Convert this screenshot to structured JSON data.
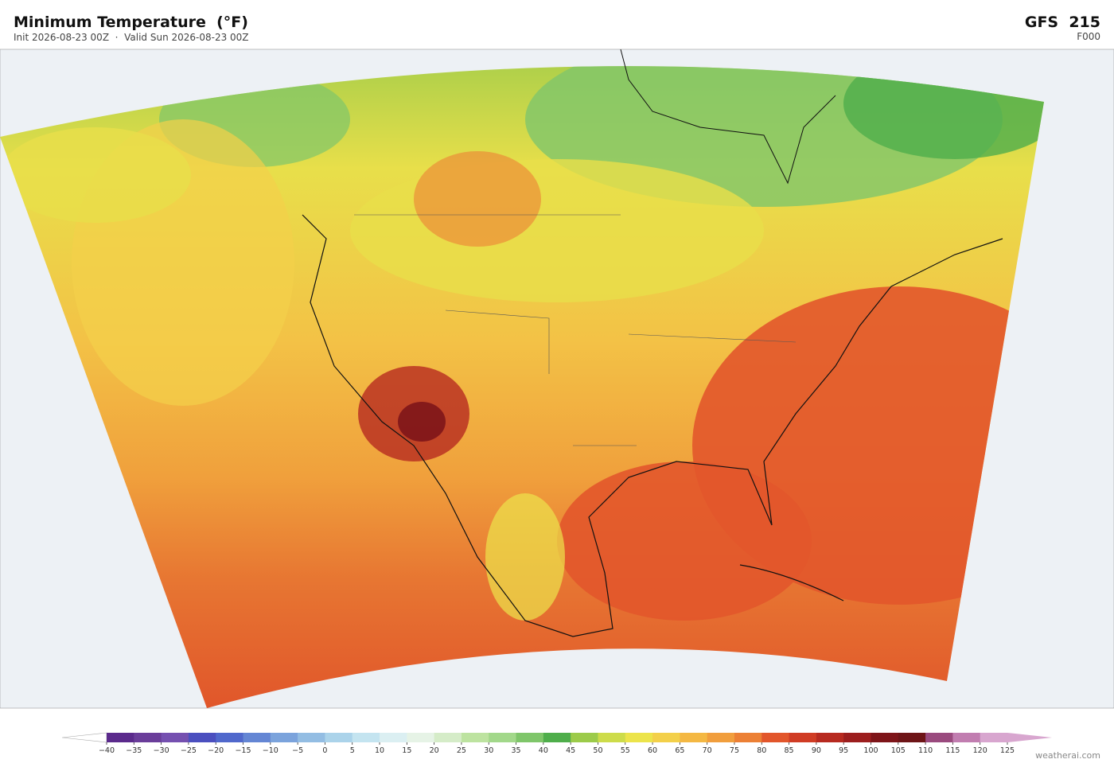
{
  "header": {
    "title": "Minimum Temperature  (°F)",
    "subtitle": "Init 2026-08-23 00Z  ·  Valid Sun 2026-08-23 00Z",
    "model": "GFS  215",
    "step": "F000"
  },
  "colorbar": {
    "ticks": [
      "−40",
      "−35",
      "−30",
      "−25",
      "−20",
      "−15",
      "−10",
      "−5",
      "0",
      "5",
      "10",
      "15",
      "20",
      "25",
      "30",
      "35",
      "40",
      "45",
      "50",
      "55",
      "60",
      "65",
      "70",
      "75",
      "80",
      "85",
      "90",
      "95",
      "100",
      "105",
      "110",
      "115",
      "120",
      "125"
    ],
    "colors": [
      "#5b2a8c",
      "#6a3d9a",
      "#7550b0",
      "#4b4fbf",
      "#5068cc",
      "#6486d4",
      "#7ba3dc",
      "#93bde3",
      "#abd3ea",
      "#c4e4f0",
      "#dbeff2",
      "#e6f3e6",
      "#d5ecc8",
      "#bde3a0",
      "#a2d88a",
      "#7fc66a",
      "#4fae4b",
      "#9ccb4a",
      "#cddc4a",
      "#ece44b",
      "#f3d04a",
      "#f4b843",
      "#f19e3d",
      "#ec8035",
      "#e2562b",
      "#d03c24",
      "#b72a20",
      "#9c1e1e",
      "#7e1519",
      "#6e1517",
      "#9a4a7e",
      "#c17db0",
      "#d8a6cf"
    ],
    "under_color": "#ffffff",
    "over_color": "#d8a6cf"
  },
  "footer": {
    "credit": "weatherai.com"
  }
}
